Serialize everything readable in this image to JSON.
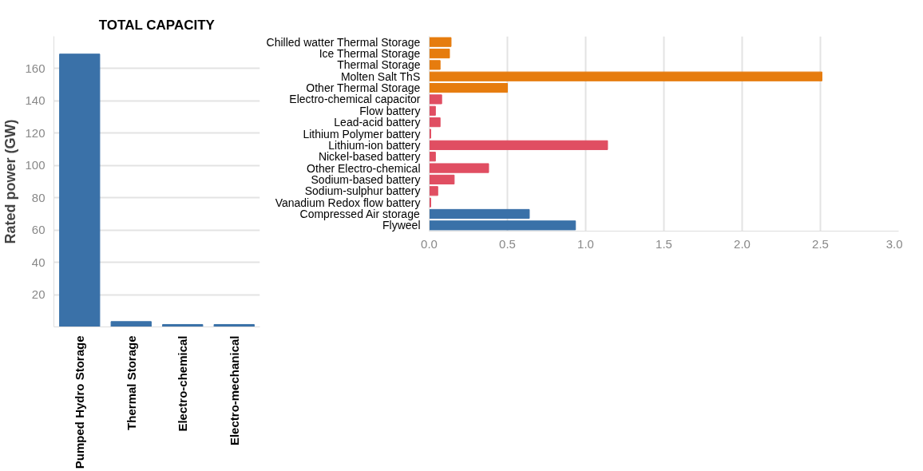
{
  "chart_data": [
    {
      "type": "bar",
      "title": "TOTAL CAPACITY",
      "ylabel": "Rated power (GW)",
      "categories": [
        "Pumped Hydro Storage",
        "Thermal Storage",
        "Electro-chemical",
        "Electro-mechanical"
      ],
      "series": [
        {
          "color": "#3a71a8",
          "values": [
            169,
            3.3,
            1.5,
            1.5
          ]
        }
      ],
      "ylim": [
        0,
        180
      ],
      "yticks": [
        20,
        40,
        60,
        80,
        100,
        120,
        140,
        160
      ],
      "grid": "y"
    },
    {
      "type": "bar",
      "orientation": "horizontal",
      "categories": [
        "Chilled watter Thermal Storage",
        "Ice Thermal Storage",
        "Thermal Storage",
        "Molten Salt ThS",
        "Other Thermal Storage",
        "Electro-chemical capacitor",
        "Flow battery",
        "Lead-acid battery",
        "Lithium Polymer battery",
        "Lithium-ion battery",
        "Nickel-based battery",
        "Other Electro-chemical",
        "Sodium-based battery",
        "Sodium-sulphur battery",
        "Vanadium Redox flow battery",
        "Compressed Air storage",
        "Flyweel"
      ],
      "series": [
        {
          "values": [
            0.14,
            0.13,
            0.07,
            2.51,
            0.5,
            0.08,
            0.04,
            0.07,
            0.01,
            1.14,
            0.04,
            0.38,
            0.16,
            0.055,
            0.01,
            0.64,
            0.935
          ],
          "colors": [
            "#e67c0e",
            "#e67c0e",
            "#e67c0e",
            "#e67c0e",
            "#e67c0e",
            "#e04e62",
            "#e04e62",
            "#e04e62",
            "#e04e62",
            "#e04e62",
            "#e04e62",
            "#e04e62",
            "#e04e62",
            "#e04e62",
            "#e04e62",
            "#3a71a8",
            "#3a71a8"
          ]
        }
      ],
      "xlim": [
        0,
        3.0
      ],
      "xticks": [
        {
          "value": 0,
          "label": "0.0"
        },
        {
          "value": 0.5,
          "label": "0.5"
        },
        {
          "value": 1,
          "label": "1.0"
        },
        {
          "value": 1.5,
          "label": "1.5"
        },
        {
          "value": 2,
          "label": "2.0"
        },
        {
          "value": 2.5,
          "label": "2.5"
        },
        {
          "value": 3,
          "label": "3.0"
        }
      ],
      "grid": "x"
    }
  ]
}
